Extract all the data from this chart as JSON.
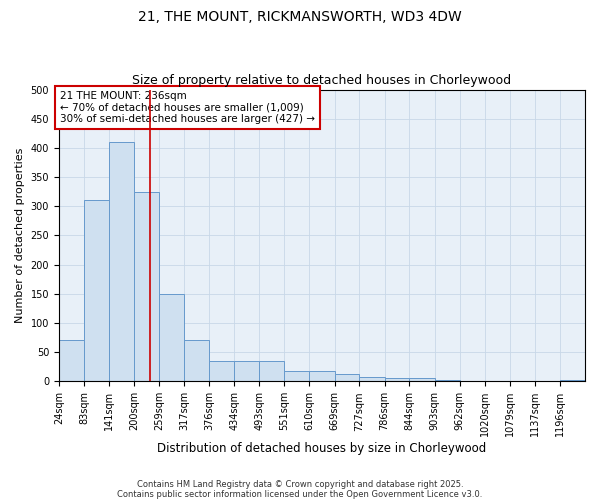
{
  "title1": "21, THE MOUNT, RICKMANSWORTH, WD3 4DW",
  "title2": "Size of property relative to detached houses in Chorleywood",
  "xlabel": "Distribution of detached houses by size in Chorleywood",
  "ylabel": "Number of detached properties",
  "bin_labels": [
    "24sqm",
    "83sqm",
    "141sqm",
    "200sqm",
    "259sqm",
    "317sqm",
    "376sqm",
    "434sqm",
    "493sqm",
    "551sqm",
    "610sqm",
    "669sqm",
    "727sqm",
    "786sqm",
    "844sqm",
    "903sqm",
    "962sqm",
    "1020sqm",
    "1079sqm",
    "1137sqm",
    "1196sqm"
  ],
  "bin_edges": [
    24,
    83,
    141,
    200,
    259,
    317,
    376,
    434,
    493,
    551,
    610,
    669,
    727,
    786,
    844,
    903,
    962,
    1020,
    1079,
    1137,
    1196,
    1255
  ],
  "bar_heights": [
    70,
    310,
    410,
    325,
    150,
    70,
    35,
    35,
    35,
    18,
    18,
    13,
    8,
    5,
    5,
    3,
    0,
    0,
    0,
    0,
    3
  ],
  "bar_facecolor": "#cfe0f0",
  "bar_edgecolor": "#6699cc",
  "grid_color": "#c8d8e8",
  "bg_color": "#e8f0f8",
  "vline_x": 236,
  "vline_color": "#cc0000",
  "annotation_text": "21 THE MOUNT: 236sqm\n← 70% of detached houses are smaller (1,009)\n30% of semi-detached houses are larger (427) →",
  "annotation_box_color": "#cc0000",
  "ylim": [
    0,
    500
  ],
  "yticks": [
    0,
    50,
    100,
    150,
    200,
    250,
    300,
    350,
    400,
    450,
    500
  ],
  "footer": "Contains HM Land Registry data © Crown copyright and database right 2025.\nContains public sector information licensed under the Open Government Licence v3.0.",
  "title1_fontsize": 10,
  "title2_fontsize": 9,
  "xlabel_fontsize": 8.5,
  "ylabel_fontsize": 8,
  "tick_fontsize": 7,
  "annotation_fontsize": 7.5,
  "footer_fontsize": 6
}
